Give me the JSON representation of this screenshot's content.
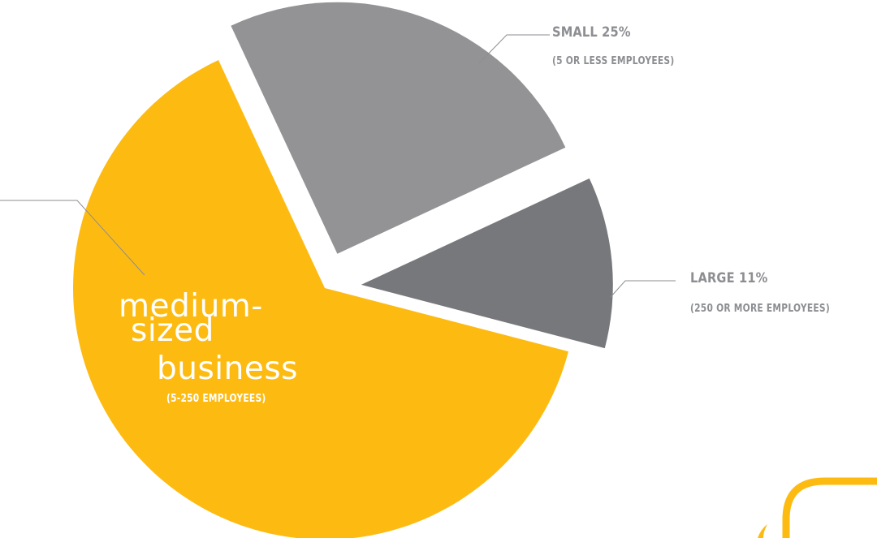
{
  "chart_data": {
    "type": "pie",
    "title": "",
    "slices": [
      {
        "label": "SMALL 25%",
        "sublabel": "(5 OR LESS EMPLOYEES)",
        "value": 25,
        "color": "#939396",
        "exploded": true
      },
      {
        "label": "LARGE 11%",
        "sublabel": "(250 OR MORE EMPLOYEES)",
        "value": 11,
        "color": "#77787b",
        "exploded": true
      },
      {
        "label": "medium-sized business",
        "lines": [
          "medium-",
          "sized",
          "business"
        ],
        "sublabel": "(5-250 EMPLOYEES)",
        "value": 64,
        "color": "#fdbb12",
        "exploded": false
      }
    ],
    "legend": "none",
    "grid": false
  },
  "colors": {
    "label_text": "#8d8e92",
    "leader_line": "#8d8e92",
    "inner_text": "#ffffff",
    "accent": "#fdbb12"
  },
  "decoration": {
    "corner_shape": "yellow-rounded-outline"
  }
}
